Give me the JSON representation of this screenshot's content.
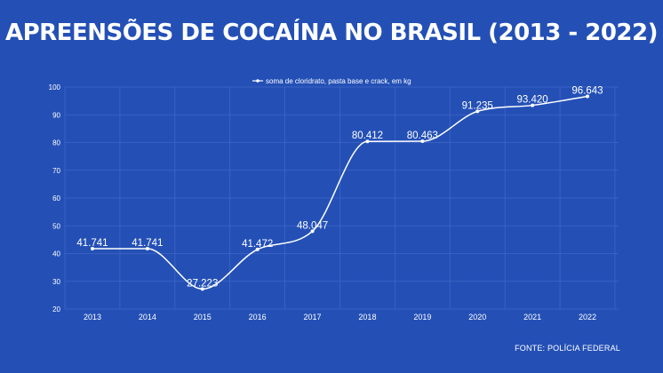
{
  "title": "APREENSÕES DE COCAÍNA NO BRASIL (2013 - 2022)",
  "source": "FONTE: POLÍCIA FEDERAL",
  "colors": {
    "background": "#2450b6",
    "line": "#ffffff",
    "grid": "#3f66c4"
  },
  "chart_data": {
    "type": "line",
    "categories": [
      "2013",
      "2014",
      "2015",
      "2016",
      "2017",
      "2018",
      "2019",
      "2020",
      "2021",
      "2022"
    ],
    "series": [
      {
        "name": "soma de cloridrato, pasta base e crack, em kg",
        "values": [
          41.741,
          41.741,
          27.223,
          41.472,
          48.047,
          80.412,
          80.463,
          91.235,
          93.42,
          96.643
        ],
        "labels": [
          "41.741",
          "41.741",
          "27.223",
          "41.472",
          "48.047",
          "80.412",
          "80.463",
          "91.235",
          "93.420",
          "96.643"
        ]
      }
    ],
    "yticks": [
      "20",
      "30",
      "40",
      "50",
      "60",
      "70",
      "80",
      "90",
      "100"
    ],
    "ylim": [
      20,
      100
    ],
    "grid": true,
    "legend_position": "top-center"
  }
}
